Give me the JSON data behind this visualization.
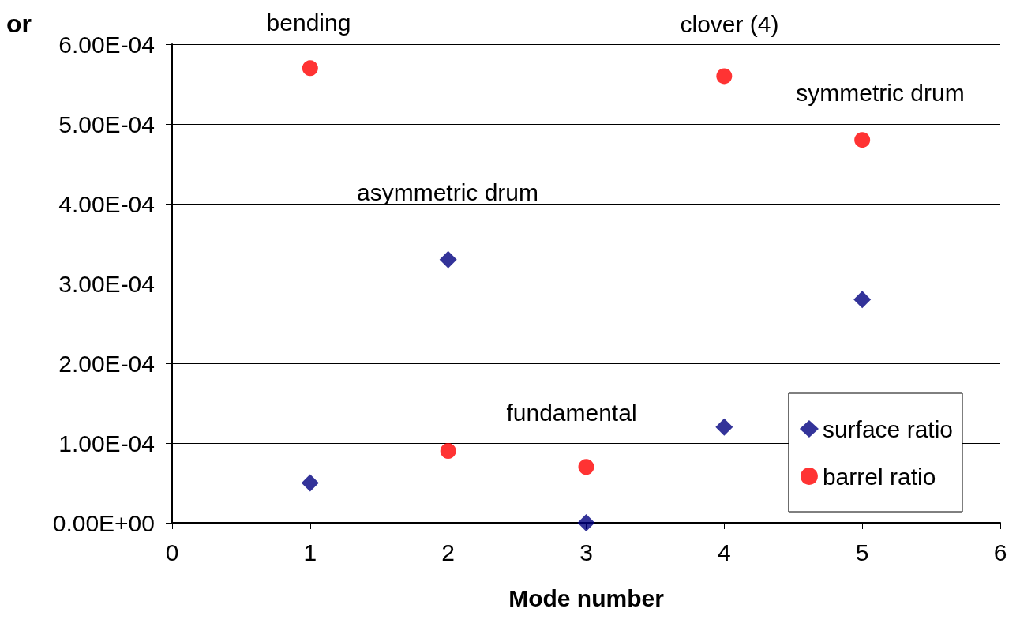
{
  "chart_data": {
    "type": "scatter",
    "ylabel": "or",
    "xlabel": "Mode number",
    "xlim": [
      0,
      6
    ],
    "xticks": [
      0,
      1,
      2,
      3,
      4,
      5,
      6
    ],
    "ylim": [
      0,
      0.0006
    ],
    "yticks": [
      {
        "value": 0,
        "label": "0.00E+00"
      },
      {
        "value": 0.0001,
        "label": "1.00E-04"
      },
      {
        "value": 0.0002,
        "label": "2.00E-04"
      },
      {
        "value": 0.0003,
        "label": "3.00E-04"
      },
      {
        "value": 0.0004,
        "label": "4.00E-04"
      },
      {
        "value": 0.0005,
        "label": "5.00E-04"
      },
      {
        "value": 0.0006,
        "label": "6.00E-04"
      }
    ],
    "grid": "y",
    "legend": "bottom right",
    "x": [
      1,
      2,
      3,
      4,
      5
    ],
    "series": [
      {
        "name": "surface ratio",
        "color": "#000080",
        "marker": "diamond",
        "values": [
          5e-05,
          0.00033,
          0,
          0.00012,
          0.00028
        ]
      },
      {
        "name": "barrel ratio",
        "color": "#ff0000",
        "marker": "circle",
        "values": [
          0.00057,
          9e-05,
          7e-05,
          0.00056,
          0.00048
        ]
      }
    ],
    "annotations": [
      "bending",
      "asymmetric drum",
      "fundamental",
      "clover (4)",
      "symmetric drum"
    ]
  }
}
